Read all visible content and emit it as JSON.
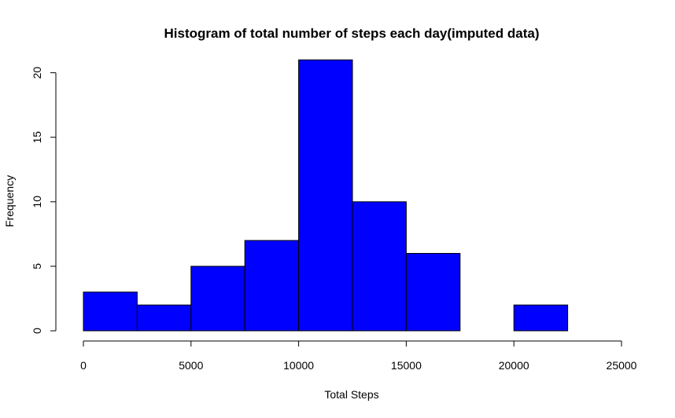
{
  "chart_data": {
    "type": "bar",
    "title": "Histogram of total number of steps each day(imputed data)",
    "xlabel": "Total Steps",
    "ylabel": "Frequency",
    "bins": [
      {
        "from": 0,
        "to": 2500,
        "count": 3
      },
      {
        "from": 2500,
        "to": 5000,
        "count": 2
      },
      {
        "from": 5000,
        "to": 7500,
        "count": 5
      },
      {
        "from": 7500,
        "to": 10000,
        "count": 7
      },
      {
        "from": 10000,
        "to": 12500,
        "count": 21
      },
      {
        "from": 12500,
        "to": 15000,
        "count": 10
      },
      {
        "from": 15000,
        "to": 17500,
        "count": 6
      },
      {
        "from": 17500,
        "to": 20000,
        "count": 0
      },
      {
        "from": 20000,
        "to": 22500,
        "count": 2
      },
      {
        "from": 22500,
        "to": 25000,
        "count": 0
      }
    ],
    "xlim": [
      0,
      25000
    ],
    "ylim": [
      0,
      21
    ],
    "x_ticks": [
      0,
      5000,
      10000,
      15000,
      20000,
      25000
    ],
    "y_ticks": [
      0,
      5,
      10,
      15,
      20
    ],
    "bar_color": "#0000ff",
    "grid": false,
    "legend": "none"
  }
}
